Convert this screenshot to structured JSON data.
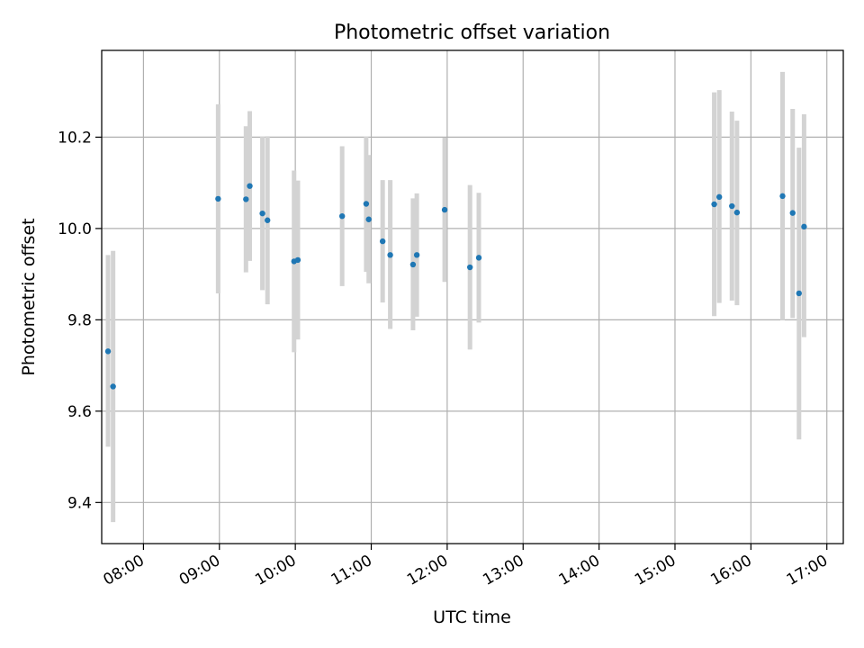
{
  "chart_data": {
    "type": "scatter",
    "title": "Photometric offset variation",
    "xlabel": "UTC time",
    "ylabel": "Photometric offset",
    "xlim": [
      "07:27",
      "17:13"
    ],
    "ylim": [
      9.31,
      10.39
    ],
    "x_ticks": [
      "08:00",
      "09:00",
      "10:00",
      "11:00",
      "12:00",
      "13:00",
      "14:00",
      "15:00",
      "16:00",
      "17:00"
    ],
    "y_ticks": [
      "9.4",
      "9.6",
      "9.8",
      "10.0",
      "10.2"
    ],
    "grid": true,
    "colors": {
      "points": "#1f77b4",
      "errorbars": "#d3d3d3",
      "grid": "#b0b0b0"
    },
    "points": [
      {
        "x": "07:32",
        "y": 9.731,
        "ylo": 9.522,
        "yhi": 9.942
      },
      {
        "x": "07:36",
        "y": 9.654,
        "ylo": 9.357,
        "yhi": 9.951
      },
      {
        "x": "08:59",
        "y": 10.065,
        "ylo": 9.858,
        "yhi": 10.272
      },
      {
        "x": "09:21",
        "y": 10.064,
        "ylo": 9.904,
        "yhi": 10.224
      },
      {
        "x": "09:24",
        "y": 10.093,
        "ylo": 9.929,
        "yhi": 10.257
      },
      {
        "x": "09:34",
        "y": 10.033,
        "ylo": 9.865,
        "yhi": 10.201
      },
      {
        "x": "09:38",
        "y": 10.018,
        "ylo": 9.834,
        "yhi": 10.202
      },
      {
        "x": "09:59",
        "y": 9.928,
        "ylo": 9.729,
        "yhi": 10.127
      },
      {
        "x": "10:02",
        "y": 9.931,
        "ylo": 9.757,
        "yhi": 10.105
      },
      {
        "x": "10:37",
        "y": 10.027,
        "ylo": 9.874,
        "yhi": 10.18
      },
      {
        "x": "10:56",
        "y": 10.054,
        "ylo": 9.905,
        "yhi": 10.201
      },
      {
        "x": "10:58",
        "y": 10.02,
        "ylo": 9.88,
        "yhi": 10.161
      },
      {
        "x": "11:09",
        "y": 9.972,
        "ylo": 9.838,
        "yhi": 10.106
      },
      {
        "x": "11:15",
        "y": 9.942,
        "ylo": 9.78,
        "yhi": 10.106
      },
      {
        "x": "11:33",
        "y": 9.921,
        "ylo": 9.777,
        "yhi": 10.066
      },
      {
        "x": "11:36",
        "y": 9.942,
        "ylo": 9.807,
        "yhi": 10.077
      },
      {
        "x": "11:58",
        "y": 10.041,
        "ylo": 9.883,
        "yhi": 10.199
      },
      {
        "x": "12:18",
        "y": 9.915,
        "ylo": 9.735,
        "yhi": 10.095
      },
      {
        "x": "12:25",
        "y": 9.936,
        "ylo": 9.794,
        "yhi": 10.078
      },
      {
        "x": "15:31",
        "y": 10.053,
        "ylo": 9.808,
        "yhi": 10.298
      },
      {
        "x": "15:35",
        "y": 10.069,
        "ylo": 9.837,
        "yhi": 10.303
      },
      {
        "x": "15:45",
        "y": 10.049,
        "ylo": 9.842,
        "yhi": 10.256
      },
      {
        "x": "15:49",
        "y": 10.035,
        "ylo": 9.832,
        "yhi": 10.236
      },
      {
        "x": "16:25",
        "y": 10.071,
        "ylo": 9.799,
        "yhi": 10.343
      },
      {
        "x": "16:33",
        "y": 10.034,
        "ylo": 9.804,
        "yhi": 10.262
      },
      {
        "x": "16:38",
        "y": 9.858,
        "ylo": 9.538,
        "yhi": 10.177
      },
      {
        "x": "16:42",
        "y": 10.004,
        "ylo": 9.762,
        "yhi": 10.25
      }
    ]
  }
}
